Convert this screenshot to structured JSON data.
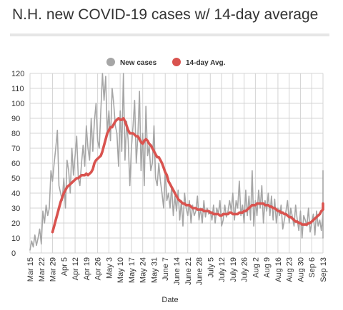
{
  "header": {
    "title": "N.H. new COVID-19 cases w/ 14-day average"
  },
  "chart_data": {
    "type": "line",
    "title": "N.H. new COVID-19 cases w/ 14-day average",
    "xlabel": "Date",
    "ylabel": "",
    "ylim": [
      0,
      120
    ],
    "yticks": [
      "0",
      "10",
      "20",
      "30",
      "40",
      "50",
      "60",
      "70",
      "80",
      "90",
      "100",
      "110",
      "120"
    ],
    "xticks": [
      "Mar 15",
      "Mar 22",
      "Mar 29",
      "Apr 5",
      "Apr 12",
      "Apr 19",
      "Apr 26",
      "May 3",
      "May 10",
      "May 17",
      "May 24",
      "May 31",
      "June 7",
      "June 14",
      "June 21",
      "June 28",
      "July 5",
      "July 12",
      "July 19",
      "July 26",
      "Aug 2",
      "Aug 9",
      "Aug 16",
      "Aug 23",
      "Aug 30",
      "Sep 6",
      "Sep 13"
    ],
    "legend_position": "top-center",
    "grid": true,
    "colors": {
      "new_cases": "#a6a6a6",
      "avg": "#d9534f"
    },
    "series": [
      {
        "name": "New cases",
        "start": "Mar 15",
        "values": [
          2,
          8,
          4,
          12,
          5,
          10,
          16,
          6,
          28,
          20,
          32,
          25,
          30,
          55,
          48,
          60,
          70,
          82,
          45,
          40,
          35,
          50,
          30,
          62,
          55,
          40,
          70,
          52,
          65,
          78,
          50,
          45,
          60,
          72,
          58,
          85,
          70,
          62,
          90,
          68,
          88,
          100,
          75,
          70,
          95,
          120,
          102,
          118,
          80,
          95,
          75,
          110,
          100,
          85,
          80,
          58,
          95,
          68,
          120,
          62,
          88,
          75,
          45,
          70,
          85,
          102,
          60,
          78,
          108,
          55,
          80,
          45,
          98,
          65,
          72,
          55,
          60,
          85,
          50,
          45,
          60,
          48,
          40,
          30,
          55,
          35,
          40,
          30,
          45,
          25,
          38,
          28,
          42,
          22,
          35,
          18,
          40,
          30,
          25,
          35,
          20,
          32,
          25,
          28,
          38,
          22,
          30,
          20,
          35,
          24,
          30,
          26,
          28,
          22,
          32,
          20,
          30,
          26,
          35,
          18,
          22,
          32,
          24,
          28,
          35,
          28,
          40,
          22,
          35,
          30,
          48,
          25,
          32,
          20,
          42,
          25,
          38,
          22,
          55,
          18,
          35,
          25,
          42,
          30,
          45,
          20,
          35,
          28,
          40,
          25,
          38,
          22,
          36,
          20,
          30,
          25,
          32,
          16,
          22,
          28,
          35,
          20,
          30,
          24,
          18,
          32,
          22,
          15,
          28,
          10,
          25,
          22,
          18,
          30,
          14,
          20,
          26,
          12,
          28,
          18,
          22,
          15,
          26,
          10,
          18,
          24,
          16,
          22,
          38,
          55,
          20,
          35,
          28,
          50,
          24,
          45,
          32,
          42
        ]
      },
      {
        "name": "14-day Avg.",
        "start": "Mar 29",
        "values": [
          14,
          18,
          22,
          26,
          30,
          34,
          37,
          40,
          42,
          44,
          45,
          46,
          47,
          48,
          49,
          50,
          50,
          51,
          52,
          52,
          52,
          53,
          52,
          53,
          54,
          56,
          60,
          62,
          63,
          64,
          65,
          68,
          72,
          76,
          80,
          82,
          84,
          84,
          86,
          88,
          89,
          90,
          89,
          89,
          90,
          88,
          85,
          82,
          80,
          80,
          80,
          79,
          78,
          78,
          76,
          74,
          73,
          75,
          76,
          75,
          73,
          72,
          70,
          68,
          66,
          64,
          64,
          62,
          60,
          57,
          54,
          52,
          48,
          46,
          44,
          42,
          40,
          38,
          36,
          35,
          34,
          33,
          33,
          32,
          32,
          32,
          31,
          30,
          30,
          30,
          29,
          29,
          29,
          29,
          28,
          28,
          28,
          28,
          27,
          27,
          26,
          26,
          26,
          26,
          25,
          25,
          26,
          26,
          26,
          26,
          27,
          27,
          26,
          26,
          26,
          26,
          27,
          27,
          27,
          28,
          28,
          29,
          30,
          31,
          32,
          32,
          32,
          33,
          33,
          33,
          33,
          33,
          32,
          32,
          32,
          31,
          31,
          30,
          30,
          29,
          28,
          28,
          27,
          27,
          26,
          26,
          25,
          24,
          24,
          23,
          22,
          21,
          21,
          20,
          20,
          19,
          19,
          19,
          19,
          20,
          20,
          21,
          22,
          23,
          24,
          25,
          26,
          28,
          29,
          30,
          31,
          33
        ]
      }
    ]
  }
}
